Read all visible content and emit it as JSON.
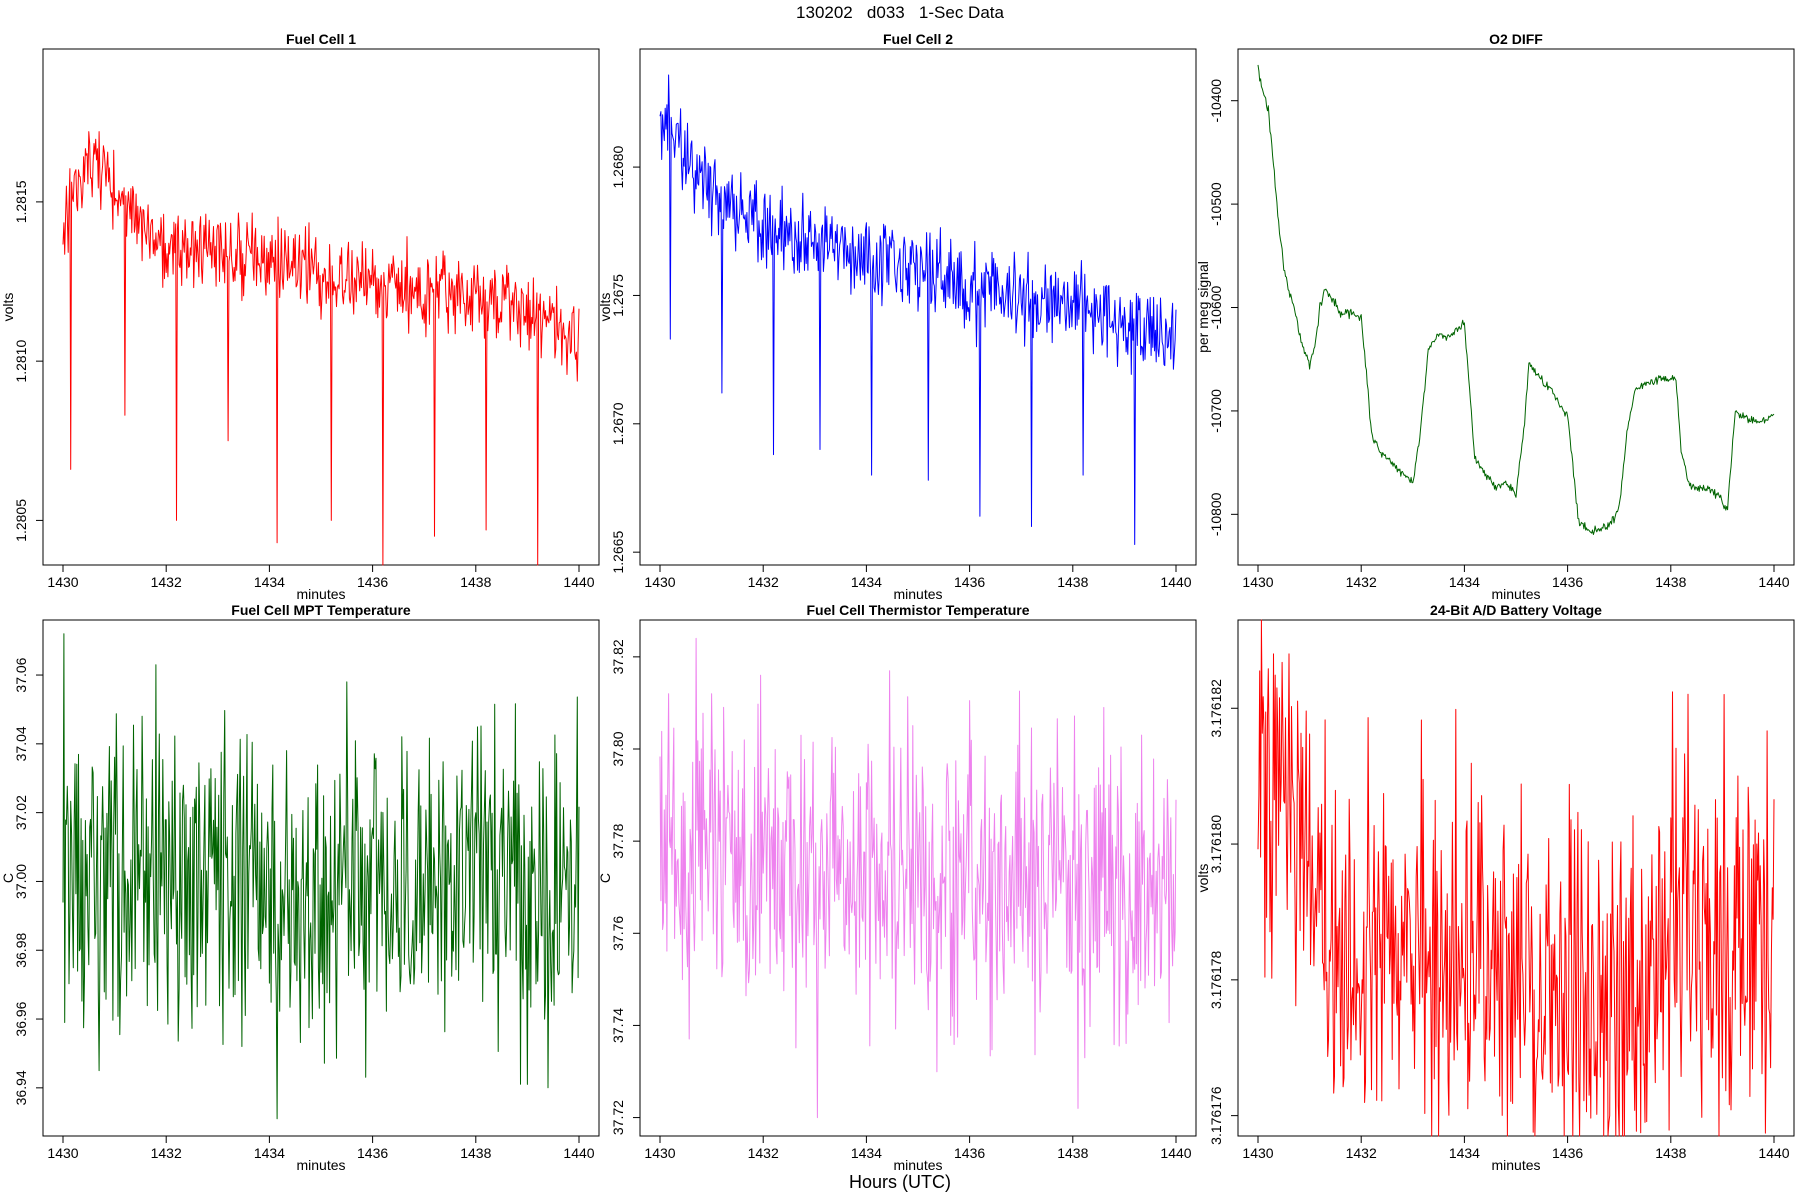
{
  "figure": {
    "suptitle": "130202   d033   1-Sec Data",
    "bottom_label": "Hours (UTC)"
  },
  "chart_data": [
    {
      "type": "line",
      "title": "Fuel Cell 1",
      "xlabel": "minutes",
      "ylabel": "volts",
      "color": "#ff0000",
      "xlim": [
        1430,
        1440
      ],
      "ylim": [
        1.28036,
        1.28198
      ],
      "xticks": [
        1430,
        1432,
        1434,
        1436,
        1438,
        1440
      ],
      "yticks": [
        1.2805,
        1.281,
        1.2815
      ],
      "ytick_labels": [
        "1.2805",
        "1.2810",
        "1.2815"
      ],
      "series": {
        "x": [
          1430.0,
          1430.5,
          1431.0,
          1431.5,
          1432.0,
          1432.5,
          1433.0,
          1433.5,
          1434.0,
          1434.5,
          1435.0,
          1435.5,
          1436.0,
          1436.5,
          1437.0,
          1437.5,
          1438.0,
          1438.5,
          1439.0,
          1439.5,
          1440.0
        ],
        "y": [
          1.28145,
          1.28162,
          1.28158,
          1.28142,
          1.28138,
          1.28136,
          1.28135,
          1.28133,
          1.28132,
          1.28131,
          1.28128,
          1.28126,
          1.28124,
          1.28122,
          1.28124,
          1.28122,
          1.2812,
          1.28119,
          1.28117,
          1.28114,
          1.28108
        ],
        "noise": 0.00017,
        "spikes": [
          [
            1430.15,
            1.28066
          ],
          [
            1431.2,
            1.28083
          ],
          [
            1432.2,
            1.2805
          ],
          [
            1433.2,
            1.28075
          ],
          [
            1434.15,
            1.28043
          ],
          [
            1435.2,
            1.2805
          ],
          [
            1436.2,
            1.28036
          ],
          [
            1437.2,
            1.28045
          ],
          [
            1438.2,
            1.28047
          ],
          [
            1439.2,
            1.28036
          ]
        ]
      }
    },
    {
      "type": "line",
      "title": "Fuel Cell 2",
      "xlabel": "minutes",
      "ylabel": "volts",
      "color": "#0000ff",
      "xlim": [
        1430,
        1440
      ],
      "ylim": [
        1.26645,
        1.26846
      ],
      "xticks": [
        1430,
        1432,
        1434,
        1436,
        1438,
        1440
      ],
      "yticks": [
        1.2665,
        1.267,
        1.2675,
        1.268
      ],
      "ytick_labels": [
        "1.2665",
        "1.2670",
        "1.2675",
        "1.2680"
      ],
      "series": {
        "x": [
          1430.0,
          1430.5,
          1431.0,
          1431.5,
          1432.0,
          1432.5,
          1433.0,
          1433.5,
          1434.0,
          1434.5,
          1435.0,
          1435.5,
          1436.0,
          1436.5,
          1437.0,
          1437.5,
          1438.0,
          1438.5,
          1439.0,
          1439.5,
          1440.0
        ],
        "y": [
          1.2682,
          1.26805,
          1.26792,
          1.26782,
          1.26778,
          1.26775,
          1.26772,
          1.26768,
          1.26766,
          1.26762,
          1.2676,
          1.26756,
          1.26752,
          1.2675,
          1.26749,
          1.26747,
          1.26745,
          1.26742,
          1.2674,
          1.26736,
          1.26732
        ],
        "noise": 0.00022,
        "spikes": [
          [
            1430.2,
            1.26733
          ],
          [
            1431.2,
            1.26712
          ],
          [
            1432.2,
            1.26688
          ],
          [
            1433.1,
            1.2669
          ],
          [
            1434.1,
            1.2668
          ],
          [
            1435.2,
            1.26678
          ],
          [
            1436.2,
            1.26664
          ],
          [
            1437.2,
            1.2666
          ],
          [
            1438.2,
            1.2668
          ],
          [
            1439.2,
            1.26653
          ]
        ]
      }
    },
    {
      "type": "line",
      "title": "O2 DIFF",
      "xlabel": "minutes",
      "ylabel": "per meg signal",
      "color": "#006400",
      "xlim": [
        1430,
        1440
      ],
      "ylim": [
        -10849,
        -10350
      ],
      "xticks": [
        1430,
        1432,
        1434,
        1436,
        1438,
        1440
      ],
      "yticks": [
        -10800,
        -10700,
        -10600,
        -10500,
        -10400
      ],
      "ytick_labels": [
        "-10800",
        "-10700",
        "-10600",
        "-10500",
        "-10400"
      ],
      "series": {
        "x": [
          1430.0,
          1430.1,
          1430.2,
          1430.3,
          1430.4,
          1430.5,
          1430.6,
          1430.7,
          1430.8,
          1430.9,
          1431.0,
          1431.1,
          1431.2,
          1431.3,
          1431.4,
          1431.6,
          1431.8,
          1432.0,
          1432.15,
          1432.2,
          1432.4,
          1432.6,
          1432.8,
          1433.0,
          1433.15,
          1433.3,
          1433.5,
          1433.7,
          1433.9,
          1434.0,
          1434.2,
          1434.4,
          1434.6,
          1434.8,
          1435.0,
          1435.15,
          1435.25,
          1435.4,
          1435.6,
          1435.8,
          1435.9,
          1436.0,
          1436.2,
          1436.25,
          1436.4,
          1436.6,
          1436.8,
          1437.0,
          1437.15,
          1437.3,
          1437.5,
          1437.7,
          1437.9,
          1438.1,
          1438.2,
          1438.35,
          1438.5,
          1438.7,
          1438.9,
          1439.1,
          1439.25,
          1439.4,
          1439.6,
          1439.8,
          1440.0
        ],
        "y": [
          -10370,
          -10390,
          -10410,
          -10460,
          -10520,
          -10560,
          -10585,
          -10600,
          -10625,
          -10640,
          -10655,
          -10640,
          -10600,
          -10580,
          -10590,
          -10605,
          -10605,
          -10610,
          -10690,
          -10725,
          -10740,
          -10750,
          -10760,
          -10770,
          -10720,
          -10640,
          -10625,
          -10630,
          -10620,
          -10615,
          -10745,
          -10760,
          -10775,
          -10770,
          -10780,
          -10720,
          -10655,
          -10665,
          -10675,
          -10690,
          -10700,
          -10705,
          -10800,
          -10810,
          -10815,
          -10815,
          -10810,
          -10795,
          -10720,
          -10680,
          -10675,
          -10670,
          -10670,
          -10670,
          -10740,
          -10770,
          -10775,
          -10775,
          -10780,
          -10795,
          -10700,
          -10705,
          -10710,
          -10710,
          -10705
        ],
        "noise": 6
      }
    },
    {
      "type": "line",
      "title": "Fuel Cell MPT Temperature",
      "xlabel": "minutes",
      "ylabel": "C",
      "color": "#006400",
      "xlim": [
        1430,
        1440
      ],
      "ylim": [
        36.926,
        37.076
      ],
      "xticks": [
        1430,
        1432,
        1434,
        1436,
        1438,
        1440
      ],
      "yticks": [
        36.94,
        36.96,
        36.98,
        37.0,
        37.02,
        37.04,
        37.06
      ],
      "ytick_labels": [
        "36.94",
        "36.96",
        "36.98",
        "37.00",
        "37.02",
        "37.04",
        "37.06"
      ],
      "series": {
        "x": [
          1430,
          1440
        ],
        "y": [
          37.0,
          36.998
        ],
        "noise": 0.06,
        "spikes": [
          [
            1430.02,
            37.072
          ],
          [
            1430.7,
            36.945
          ],
          [
            1431.8,
            37.063
          ],
          [
            1434.15,
            36.931
          ],
          [
            1435.5,
            37.058
          ],
          [
            1439.0,
            36.941
          ],
          [
            1439.4,
            36.94
          ]
        ]
      }
    },
    {
      "type": "line",
      "title": "Fuel Cell Thermistor Temperature",
      "xlabel": "minutes",
      "ylabel": "C",
      "color": "#ee82ee",
      "xlim": [
        1430,
        1440
      ],
      "ylim": [
        37.716,
        37.828
      ],
      "xticks": [
        1430,
        1432,
        1434,
        1436,
        1438,
        1440
      ],
      "yticks": [
        37.72,
        37.74,
        37.76,
        37.78,
        37.8,
        37.82
      ],
      "ytick_labels": [
        "37.72",
        "37.74",
        "37.76",
        "37.78",
        "37.80",
        "37.82"
      ],
      "series": {
        "x": [
          1430,
          1440
        ],
        "y": [
          37.775,
          37.768
        ],
        "noise": 0.045,
        "spikes": [
          [
            1430.7,
            37.824
          ],
          [
            1431.95,
            37.816
          ],
          [
            1433.05,
            37.72
          ],
          [
            1434.45,
            37.817
          ],
          [
            1438.1,
            37.722
          ],
          [
            1438.6,
            37.809
          ]
        ]
      }
    },
    {
      "type": "line",
      "title": "24-Bit A/D Battery Voltage",
      "xlabel": "minutes",
      "ylabel": "volts",
      "color": "#ff0000",
      "xlim": [
        1430,
        1440
      ],
      "ylim": [
        3.1761757,
        3.1761833
      ],
      "xticks": [
        1430,
        1432,
        1434,
        1436,
        1438,
        1440
      ],
      "yticks": [
        3.176176,
        3.176178,
        3.17618,
        3.176182
      ],
      "ytick_labels": [
        "3.176176",
        "3.176178",
        "3.176180",
        "3.176182"
      ],
      "series": {
        "x": [
          1430.0,
          1430.5,
          1431.0,
          1431.5,
          1432.0,
          1432.5,
          1433.0,
          1433.5,
          1434.0,
          1434.5,
          1435.0,
          1435.5,
          1436.0,
          1436.5,
          1437.0,
          1437.5,
          1438.0,
          1438.5,
          1439.0,
          1439.5,
          1440.0
        ],
        "y": [
          3.1761805,
          3.176181,
          3.1761793,
          3.1761783,
          3.1761785,
          3.1761787,
          3.1761786,
          3.1761783,
          3.1761785,
          3.1761782,
          3.1761781,
          3.176178,
          3.1761782,
          3.1761775,
          3.1761775,
          3.1761778,
          3.1761788,
          3.1761788,
          3.1761786,
          3.1761785,
          3.1761786
        ],
        "noise": 3.8e-06,
        "spikes": [
          [
            1430.3,
            3.1761828
          ],
          [
            1430.6,
            3.1761828
          ],
          [
            1436.8,
            3.1761759
          ],
          [
            1437.5,
            3.1761759
          ]
        ]
      }
    }
  ]
}
